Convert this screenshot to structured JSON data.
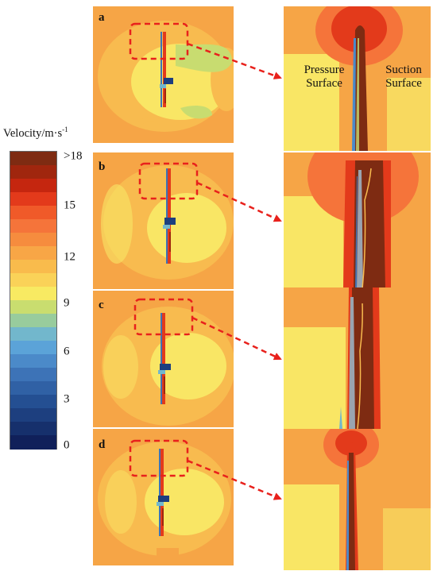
{
  "legend": {
    "title": "Velocity/m·s",
    "title_superscript": "-1",
    "ticks": [
      ">18",
      "15",
      "12",
      "9",
      "6",
      "3",
      "0"
    ],
    "tick_values": [
      18,
      15,
      12,
      9,
      6,
      3,
      0
    ],
    "colors": [
      "#7e2b12",
      "#a0260e",
      "#c5260f",
      "#e33a1b",
      "#f05a29",
      "#f5743a",
      "#f68c3e",
      "#f8a646",
      "#f9bb4c",
      "#fad258",
      "#f8ea62",
      "#c9dd6f",
      "#98cc9d",
      "#72b7cc",
      "#5ba3d8",
      "#4b8ac9",
      "#3d73b7",
      "#3061a5",
      "#244f92",
      "#1d3f7f",
      "#16306c",
      "#10205a"
    ]
  },
  "panels": [
    {
      "id": "a",
      "label": "a"
    },
    {
      "id": "b",
      "label": "b"
    },
    {
      "id": "c",
      "label": "c"
    },
    {
      "id": "d",
      "label": "d"
    }
  ],
  "zoom_labels": {
    "pressure": "Pressure Surface",
    "suction": "Suction Surface"
  },
  "colors": {
    "background_orange": "#f6a546",
    "light_orange": "#f8bb4f",
    "yellow": "#f9e665",
    "green_yellow": "#c8dc70",
    "dark_red": "#7e2b12",
    "red": "#e33a1b",
    "blue": "#3d73b7",
    "dash_red": "#e8211c"
  }
}
